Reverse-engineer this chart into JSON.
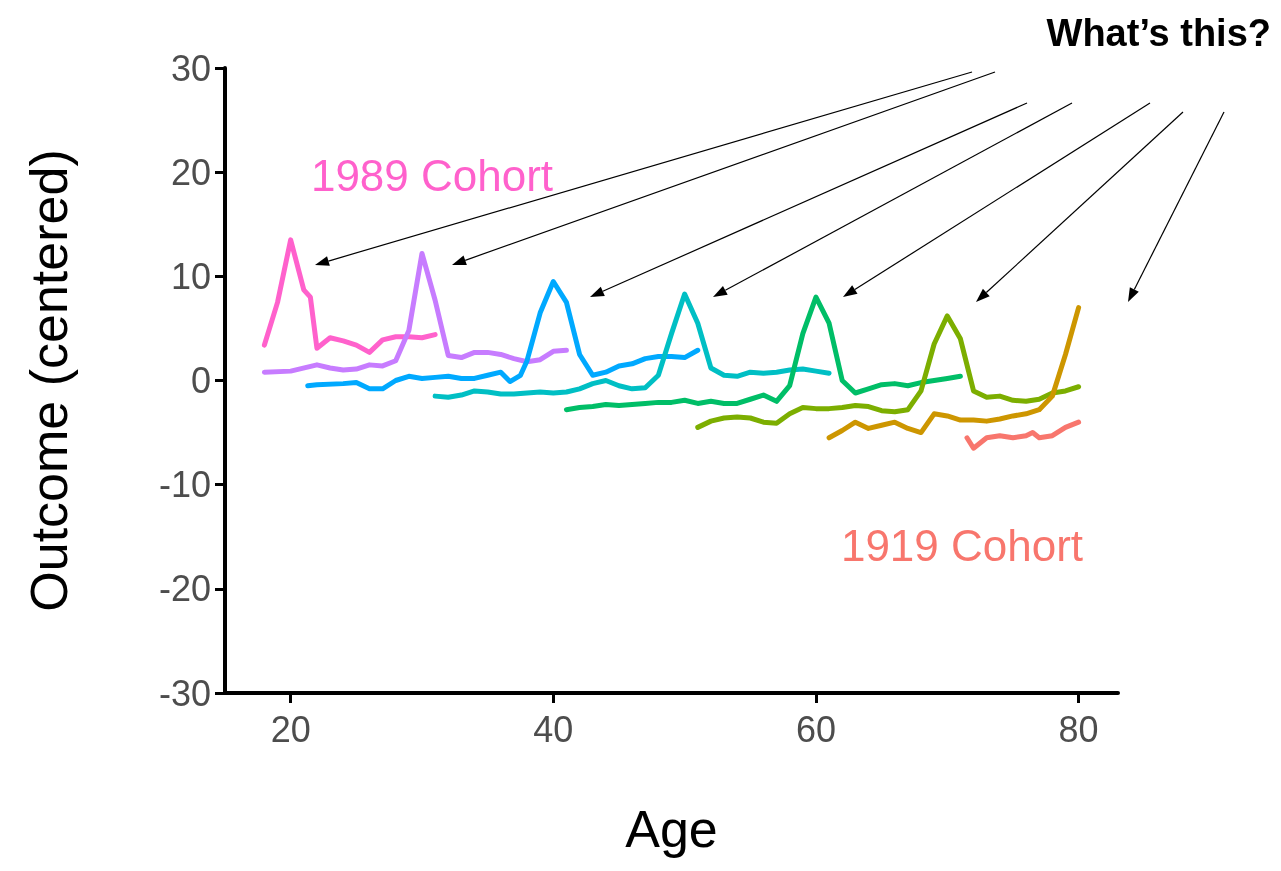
{
  "chart_data": {
    "type": "line",
    "xlabel": "Age",
    "ylabel": "Outcome (centered)",
    "xlim": [
      15,
      83
    ],
    "xticks": [
      20,
      40,
      60,
      80
    ],
    "ylim": [
      -30,
      30
    ],
    "yticks": [
      -30,
      -20,
      -10,
      0,
      10,
      20,
      30
    ],
    "grid": false,
    "marker": "none",
    "line_style": "solid",
    "annotations": [
      "What’s this?"
    ],
    "series": [
      {
        "name": "1989 Cohort",
        "color": "#ff61cc",
        "x": [
          18,
          19,
          20,
          21,
          21.5,
          22,
          23,
          24,
          25,
          26,
          26.5,
          27,
          28,
          29,
          30,
          31
        ],
        "values": [
          3.4,
          7.5,
          13.5,
          8.7,
          8,
          3.1,
          4.1,
          3.8,
          3.4,
          2.7,
          3.3,
          3.9,
          4.2,
          4.2,
          4.1,
          4.4
        ]
      },
      {
        "color": "#c77cff",
        "x": [
          18,
          20,
          22,
          23,
          24,
          25,
          26,
          27,
          28,
          29,
          30,
          31,
          32,
          33,
          34,
          35,
          36,
          37,
          38,
          39,
          40,
          41
        ],
        "values": [
          0.8,
          0.9,
          1.5,
          1.2,
          1,
          1.1,
          1.5,
          1.4,
          1.9,
          4.8,
          12.2,
          7.7,
          2.4,
          2.2,
          2.7,
          2.7,
          2.5,
          2.1,
          1.8,
          2,
          2.8,
          2.9
        ]
      },
      {
        "color": "#00a9ff",
        "x": [
          21.3,
          22,
          24,
          25,
          26,
          27,
          28,
          29,
          30,
          31,
          32,
          33,
          34,
          35,
          36,
          36.7,
          37.5,
          38,
          39,
          40,
          41,
          42,
          43,
          44,
          45,
          46,
          47,
          48,
          49,
          50,
          51
        ],
        "values": [
          -0.5,
          -0.4,
          -0.3,
          -0.2,
          -0.8,
          -0.8,
          0,
          0.4,
          0.2,
          0.3,
          0.4,
          0.2,
          0.2,
          0.5,
          0.8,
          -0.1,
          0.5,
          1.9,
          6.5,
          9.5,
          7.5,
          2.5,
          0.5,
          0.8,
          1.4,
          1.6,
          2.1,
          2.3,
          2.3,
          2.2,
          2.9
        ]
      },
      {
        "color": "#00bfc4",
        "x": [
          31,
          32,
          33,
          34,
          35,
          36,
          37,
          38,
          39,
          40,
          41,
          42,
          43,
          44,
          45,
          46,
          47,
          48,
          49,
          50,
          51,
          52,
          53,
          54,
          55,
          56,
          57,
          58,
          59,
          60,
          61
        ],
        "values": [
          -1.5,
          -1.6,
          -1.4,
          -1,
          -1.1,
          -1.3,
          -1.3,
          -1.2,
          -1.1,
          -1.2,
          -1.1,
          -0.8,
          -0.3,
          0,
          -0.5,
          -0.8,
          -0.7,
          0.5,
          4.5,
          8.3,
          5.5,
          1.2,
          0.5,
          0.4,
          0.8,
          0.7,
          0.8,
          1,
          1.1,
          0.9,
          0.7
        ]
      },
      {
        "color": "#00be67",
        "x": [
          41,
          42,
          43,
          44,
          45,
          46,
          47,
          48,
          49,
          50,
          51,
          52,
          53,
          54,
          55,
          56,
          57,
          58,
          59,
          60,
          61,
          62,
          63,
          64,
          65,
          66,
          67,
          68,
          69,
          70,
          71
        ],
        "values": [
          -2.8,
          -2.6,
          -2.5,
          -2.3,
          -2.4,
          -2.3,
          -2.2,
          -2.1,
          -2.1,
          -1.9,
          -2.2,
          -2,
          -2.2,
          -2.2,
          -1.8,
          -1.4,
          -2,
          -0.5,
          4.5,
          8,
          5.5,
          0,
          -1.2,
          -0.8,
          -0.4,
          -0.3,
          -0.5,
          -0.2,
          0,
          0.2,
          0.4
        ]
      },
      {
        "color": "#7cae00",
        "x": [
          51,
          52,
          53,
          54,
          55,
          56,
          57,
          58,
          59,
          60,
          61,
          62,
          63,
          64,
          65,
          66,
          67,
          68,
          69,
          70,
          71,
          72,
          73,
          74,
          75,
          76,
          77,
          78,
          79,
          80
        ],
        "values": [
          -4.5,
          -3.9,
          -3.6,
          -3.5,
          -3.6,
          -4,
          -4.1,
          -3.2,
          -2.6,
          -2.7,
          -2.7,
          -2.6,
          -2.4,
          -2.5,
          -2.9,
          -3,
          -2.8,
          -1,
          3.5,
          6.2,
          4,
          -1,
          -1.6,
          -1.5,
          -1.9,
          -2,
          -1.8,
          -1.2,
          -1,
          -0.6
        ]
      },
      {
        "color": "#cd9600",
        "x": [
          61,
          62,
          63,
          64,
          65,
          66,
          67,
          68,
          69,
          70,
          71,
          72,
          73,
          74,
          75,
          76,
          77,
          78,
          79,
          80
        ],
        "values": [
          -5.5,
          -4.8,
          -4,
          -4.6,
          -4.3,
          -4,
          -4.6,
          -5,
          -3.2,
          -3.4,
          -3.8,
          -3.8,
          -3.9,
          -3.7,
          -3.4,
          -3.2,
          -2.8,
          -1.5,
          2.5,
          7
        ]
      },
      {
        "name": "1919 Cohort",
        "color": "#f8766d",
        "x": [
          71.5,
          72,
          73,
          74,
          75,
          76,
          76.5,
          77,
          78,
          79,
          80
        ],
        "values": [
          -5.5,
          -6.5,
          -5.5,
          -5.3,
          -5.5,
          -5.3,
          -5,
          -5.5,
          -5.3,
          -4.5,
          -4
        ]
      }
    ]
  }
}
